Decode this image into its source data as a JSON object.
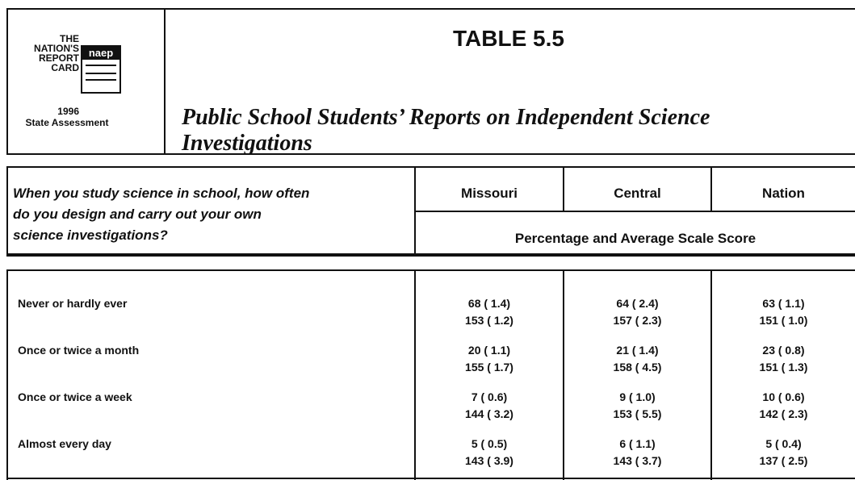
{
  "header": {
    "logo": {
      "lines": [
        "THE NATION'S",
        "REPORT",
        "CARD"
      ],
      "brand": "naep",
      "year": "1996",
      "caption": "State Assessment"
    },
    "title": "TABLE 5.5",
    "subtitle_lines": [
      "Public School Students’ Reports on Independent Science",
      "Investigations"
    ]
  },
  "table": {
    "question_lines": [
      "When you study science in school, how often",
      "do you design and carry out your own",
      "science investigations?"
    ],
    "columns": [
      "Missouri",
      "Central",
      "Nation"
    ],
    "subheader": "Percentage and Average Scale Score",
    "rows": [
      {
        "label": "Never or hardly ever",
        "cells": [
          [
            "68 ( 1.4)",
            "153 ( 1.2)"
          ],
          [
            "64 ( 2.4)",
            "157 ( 2.3)"
          ],
          [
            "63 ( 1.1)",
            "151 ( 1.0)"
          ]
        ]
      },
      {
        "label": "Once or twice a month",
        "cells": [
          [
            "20 ( 1.1)",
            "155 ( 1.7)"
          ],
          [
            "21 ( 1.4)",
            "158 ( 4.5)"
          ],
          [
            "23 ( 0.8)",
            "151 ( 1.3)"
          ]
        ]
      },
      {
        "label": "Once or twice a week",
        "cells": [
          [
            "7 ( 0.6)",
            "144 ( 3.2)"
          ],
          [
            "9 ( 1.0)",
            "153 ( 5.5)"
          ],
          [
            "10 ( 0.6)",
            "142 ( 2.3)"
          ]
        ]
      },
      {
        "label": "Almost every day",
        "cells": [
          [
            "5 ( 0.5)",
            "143 ( 3.9)"
          ],
          [
            "6 ( 1.1)",
            "143 ( 3.7)"
          ],
          [
            "5 ( 0.4)",
            "137 ( 2.5)"
          ]
        ]
      }
    ]
  }
}
